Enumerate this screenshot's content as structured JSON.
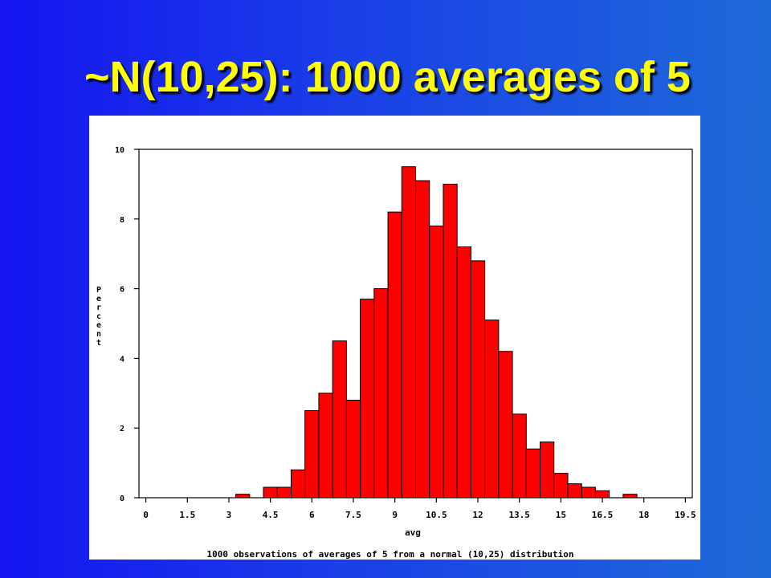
{
  "slide": {
    "title": "~N(10,25): 1000 averages of 5"
  },
  "colors": {
    "background_left": "#1515f0",
    "background_right": "#1e6ad8",
    "title": "#ffff00",
    "bar_fill": "#ff0000",
    "bar_stroke": "#000000"
  },
  "chart_data": {
    "type": "bar",
    "title": "",
    "xlabel": "avg",
    "ylabel": "Percent",
    "footnote": "1000 observations of averages of 5 from a normal (10,25) distribution",
    "bin_width": 0.5,
    "x_ticks": [
      "0",
      "1.5",
      "3",
      "4.5",
      "6",
      "7.5",
      "9",
      "10.5",
      "12",
      "13.5",
      "15",
      "16.5",
      "18",
      "19.5"
    ],
    "y_ticks": [
      "0",
      "2",
      "4",
      "6",
      "8",
      "10"
    ],
    "xlim": [
      -0.25,
      19.75
    ],
    "ylim": [
      0,
      10
    ],
    "grid": false,
    "legend": "none",
    "bins": [
      {
        "x": 3.5,
        "value": 0.1
      },
      {
        "x": 4.5,
        "value": 0.3
      },
      {
        "x": 5.0,
        "value": 0.3
      },
      {
        "x": 5.5,
        "value": 0.8
      },
      {
        "x": 6.0,
        "value": 2.5
      },
      {
        "x": 6.5,
        "value": 3.0
      },
      {
        "x": 7.0,
        "value": 4.5
      },
      {
        "x": 7.5,
        "value": 2.8
      },
      {
        "x": 8.0,
        "value": 5.7
      },
      {
        "x": 8.5,
        "value": 6.0
      },
      {
        "x": 9.0,
        "value": 8.2
      },
      {
        "x": 9.5,
        "value": 9.5
      },
      {
        "x": 10.0,
        "value": 9.1
      },
      {
        "x": 10.5,
        "value": 7.8
      },
      {
        "x": 11.0,
        "value": 9.0
      },
      {
        "x": 11.5,
        "value": 7.2
      },
      {
        "x": 12.0,
        "value": 6.8
      },
      {
        "x": 12.5,
        "value": 5.1
      },
      {
        "x": 13.0,
        "value": 4.2
      },
      {
        "x": 13.5,
        "value": 2.4
      },
      {
        "x": 14.0,
        "value": 1.4
      },
      {
        "x": 14.5,
        "value": 1.6
      },
      {
        "x": 15.0,
        "value": 0.7
      },
      {
        "x": 15.5,
        "value": 0.4
      },
      {
        "x": 16.0,
        "value": 0.3
      },
      {
        "x": 16.5,
        "value": 0.2
      },
      {
        "x": 17.5,
        "value": 0.1
      }
    ]
  }
}
